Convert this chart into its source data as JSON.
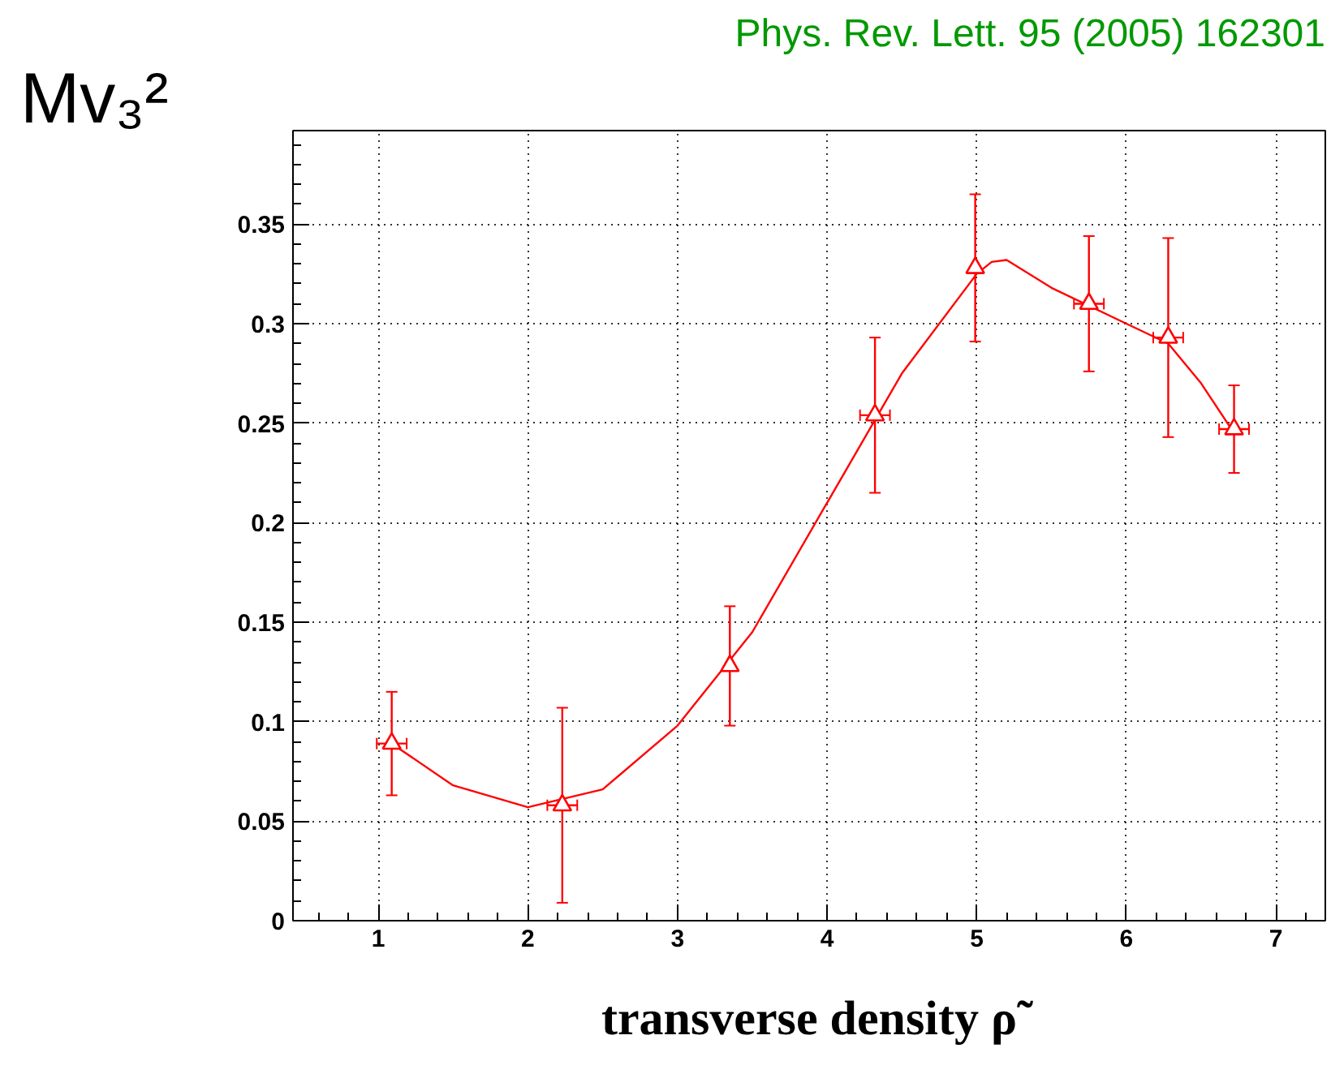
{
  "chart_data": {
    "type": "scatter",
    "xlabel": "transverse density ρ̃",
    "ylabel": "Mv₃²",
    "annotations": [
      "Phys. Rev. Lett. 95 (2005) 162301"
    ],
    "series": [
      {
        "color": "#ff0000",
        "marker": "triangle",
        "x": [
          1.09,
          2.23,
          3.35,
          4.32,
          4.99,
          5.75,
          6.28,
          6.72
        ],
        "values": [
          0.089,
          0.058,
          0.128,
          0.254,
          0.328,
          0.31,
          0.293,
          0.247
        ],
        "errors": [
          0.026,
          0.049,
          0.03,
          0.039,
          0.037,
          0.034,
          0.05,
          0.022
        ],
        "xerrors": [
          0.1,
          0.1,
          null,
          0.1,
          null,
          0.1,
          0.1,
          0.1
        ]
      },
      {
        "type": "line",
        "color": "#ff0000",
        "marker": "none",
        "x": [
          1.09,
          1.5,
          2.0,
          2.5,
          3.0,
          3.5,
          4.0,
          4.5,
          5.0,
          5.1,
          5.2,
          5.5,
          6.0,
          6.28,
          6.5,
          6.72
        ],
        "values": [
          0.089,
          0.068,
          0.057,
          0.066,
          0.098,
          0.145,
          0.21,
          0.275,
          0.325,
          0.331,
          0.332,
          0.318,
          0.3,
          0.29,
          0.27,
          0.245
        ]
      }
    ],
    "xlim": [
      0.43,
      7.33
    ],
    "ylim": [
      0,
      0.397
    ],
    "xticks": [
      1,
      2,
      3,
      4,
      5,
      6,
      7
    ],
    "yticks": [
      0,
      0.05,
      0.1,
      0.15,
      0.2,
      0.25,
      0.3,
      0.35
    ],
    "grid": true
  }
}
